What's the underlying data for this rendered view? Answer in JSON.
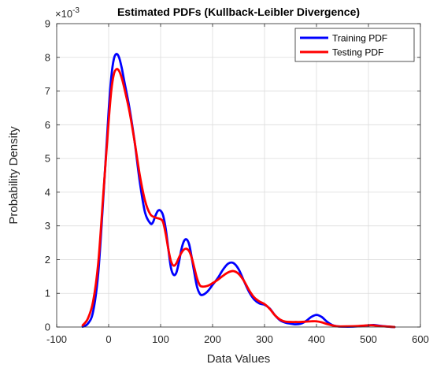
{
  "chart_data": {
    "type": "line",
    "title": "Estimated PDFs (Kullback-Leibler Divergence)",
    "xlabel": "Data Values",
    "ylabel": "Probability Density",
    "y_exponent_base": "10",
    "y_exponent_power": "-3",
    "xlim": [
      -100,
      600
    ],
    "ylim": [
      0,
      9
    ],
    "xticks": [
      -100,
      0,
      100,
      200,
      300,
      400,
      500,
      600
    ],
    "yticks": [
      0,
      1,
      2,
      3,
      4,
      5,
      6,
      7,
      8,
      9
    ],
    "grid": true,
    "legend_position": "top-right",
    "series": [
      {
        "name": "Training PDF",
        "color": "#0000ff",
        "points": [
          [
            -50,
            0.01
          ],
          [
            -40,
            0.1
          ],
          [
            -30,
            0.45
          ],
          [
            -20,
            1.6
          ],
          [
            -10,
            3.9
          ],
          [
            0,
            6.4
          ],
          [
            5,
            7.4
          ],
          [
            10,
            7.95
          ],
          [
            15,
            8.1
          ],
          [
            20,
            8.0
          ],
          [
            25,
            7.7
          ],
          [
            30,
            7.3
          ],
          [
            40,
            6.5
          ],
          [
            50,
            5.5
          ],
          [
            60,
            4.3
          ],
          [
            70,
            3.4
          ],
          [
            80,
            3.08
          ],
          [
            85,
            3.1
          ],
          [
            90,
            3.3
          ],
          [
            95,
            3.45
          ],
          [
            100,
            3.45
          ],
          [
            105,
            3.3
          ],
          [
            110,
            2.9
          ],
          [
            115,
            2.3
          ],
          [
            120,
            1.75
          ],
          [
            125,
            1.55
          ],
          [
            130,
            1.6
          ],
          [
            135,
            1.9
          ],
          [
            140,
            2.3
          ],
          [
            145,
            2.55
          ],
          [
            150,
            2.6
          ],
          [
            155,
            2.45
          ],
          [
            160,
            2.05
          ],
          [
            165,
            1.6
          ],
          [
            170,
            1.2
          ],
          [
            175,
            1.0
          ],
          [
            180,
            0.95
          ],
          [
            190,
            1.05
          ],
          [
            200,
            1.25
          ],
          [
            210,
            1.45
          ],
          [
            220,
            1.7
          ],
          [
            230,
            1.88
          ],
          [
            240,
            1.9
          ],
          [
            250,
            1.72
          ],
          [
            260,
            1.38
          ],
          [
            270,
            1.05
          ],
          [
            280,
            0.82
          ],
          [
            290,
            0.7
          ],
          [
            300,
            0.66
          ],
          [
            310,
            0.55
          ],
          [
            320,
            0.35
          ],
          [
            330,
            0.2
          ],
          [
            340,
            0.13
          ],
          [
            350,
            0.1
          ],
          [
            360,
            0.08
          ],
          [
            370,
            0.1
          ],
          [
            380,
            0.18
          ],
          [
            390,
            0.3
          ],
          [
            400,
            0.36
          ],
          [
            410,
            0.3
          ],
          [
            420,
            0.16
          ],
          [
            430,
            0.06
          ],
          [
            440,
            0.02
          ],
          [
            460,
            0.01
          ],
          [
            480,
            0.02
          ],
          [
            500,
            0.05
          ],
          [
            510,
            0.06
          ],
          [
            520,
            0.04
          ],
          [
            540,
            0.01
          ],
          [
            550,
            0.0
          ]
        ]
      },
      {
        "name": "Testing PDF",
        "color": "#ff0000",
        "points": [
          [
            -50,
            0.05
          ],
          [
            -40,
            0.25
          ],
          [
            -30,
            0.75
          ],
          [
            -20,
            1.9
          ],
          [
            -10,
            4.0
          ],
          [
            0,
            6.1
          ],
          [
            5,
            7.0
          ],
          [
            10,
            7.5
          ],
          [
            15,
            7.65
          ],
          [
            20,
            7.6
          ],
          [
            25,
            7.4
          ],
          [
            30,
            7.1
          ],
          [
            40,
            6.4
          ],
          [
            50,
            5.5
          ],
          [
            60,
            4.5
          ],
          [
            70,
            3.75
          ],
          [
            80,
            3.35
          ],
          [
            90,
            3.25
          ],
          [
            100,
            3.2
          ],
          [
            105,
            3.1
          ],
          [
            110,
            2.75
          ],
          [
            115,
            2.3
          ],
          [
            120,
            1.95
          ],
          [
            125,
            1.82
          ],
          [
            130,
            1.88
          ],
          [
            135,
            2.05
          ],
          [
            140,
            2.2
          ],
          [
            145,
            2.3
          ],
          [
            150,
            2.32
          ],
          [
            155,
            2.25
          ],
          [
            160,
            2.05
          ],
          [
            165,
            1.75
          ],
          [
            170,
            1.45
          ],
          [
            175,
            1.25
          ],
          [
            180,
            1.2
          ],
          [
            190,
            1.22
          ],
          [
            200,
            1.3
          ],
          [
            210,
            1.4
          ],
          [
            220,
            1.52
          ],
          [
            230,
            1.62
          ],
          [
            240,
            1.66
          ],
          [
            250,
            1.58
          ],
          [
            260,
            1.38
          ],
          [
            270,
            1.1
          ],
          [
            280,
            0.88
          ],
          [
            290,
            0.76
          ],
          [
            300,
            0.68
          ],
          [
            310,
            0.54
          ],
          [
            320,
            0.35
          ],
          [
            330,
            0.22
          ],
          [
            340,
            0.16
          ],
          [
            350,
            0.15
          ],
          [
            360,
            0.15
          ],
          [
            370,
            0.15
          ],
          [
            380,
            0.16
          ],
          [
            390,
            0.17
          ],
          [
            400,
            0.17
          ],
          [
            410,
            0.14
          ],
          [
            420,
            0.09
          ],
          [
            430,
            0.05
          ],
          [
            440,
            0.02
          ],
          [
            460,
            0.02
          ],
          [
            480,
            0.03
          ],
          [
            500,
            0.05
          ],
          [
            510,
            0.05
          ],
          [
            520,
            0.03
          ],
          [
            540,
            0.01
          ],
          [
            550,
            0.0
          ]
        ]
      }
    ]
  }
}
